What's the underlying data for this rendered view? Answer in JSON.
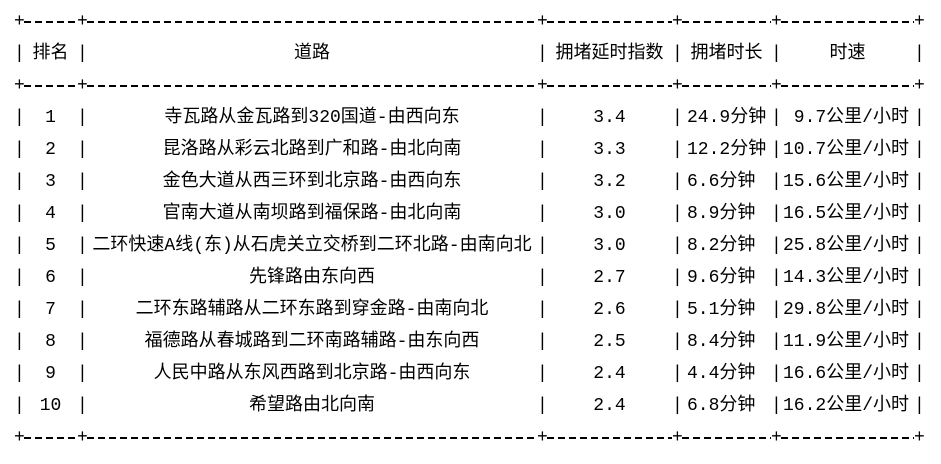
{
  "table": {
    "sep": "|",
    "cross": "+",
    "text_color": "#000000",
    "background_color": "#ffffff",
    "columns": {
      "rank": "排名",
      "road": "道路",
      "delay_index": "拥堵延时指数",
      "duration": "拥堵时长",
      "speed": "时速"
    },
    "rows": [
      {
        "rank": "1",
        "road": "寺瓦路从金瓦路到320国道-由西向东",
        "index": "3.4",
        "duration": "24.9分钟",
        "speed": "9.7公里/小时"
      },
      {
        "rank": "2",
        "road": "昆洛路从彩云北路到广和路-由北向南",
        "index": "3.3",
        "duration": "12.2分钟",
        "speed": "10.7公里/小时"
      },
      {
        "rank": "3",
        "road": "金色大道从西三环到北京路-由西向东",
        "index": "3.2",
        "duration": "6.6分钟",
        "speed": "15.6公里/小时"
      },
      {
        "rank": "4",
        "road": "官南大道从南坝路到福保路-由北向南",
        "index": "3.0",
        "duration": "8.9分钟",
        "speed": "16.5公里/小时"
      },
      {
        "rank": "5",
        "road": "二环快速A线(东)从石虎关立交桥到二环北路-由南向北",
        "index": "3.0",
        "duration": "8.2分钟",
        "speed": "25.8公里/小时"
      },
      {
        "rank": "6",
        "road": "先锋路由东向西",
        "index": "2.7",
        "duration": "9.6分钟",
        "speed": "14.3公里/小时"
      },
      {
        "rank": "7",
        "road": "二环东路辅路从二环东路到穿金路-由南向北",
        "index": "2.6",
        "duration": "5.1分钟",
        "speed": "29.8公里/小时"
      },
      {
        "rank": "8",
        "road": "福德路从春城路到二环南路辅路-由东向西",
        "index": "2.5",
        "duration": "8.4分钟",
        "speed": "11.9公里/小时"
      },
      {
        "rank": "9",
        "road": "人民中路从东风西路到北京路-由西向东",
        "index": "2.4",
        "duration": "4.4分钟",
        "speed": "16.6公里/小时"
      },
      {
        "rank": "10",
        "road": "希望路由北向南",
        "index": "2.4",
        "duration": "6.8分钟",
        "speed": "16.2公里/小时"
      }
    ]
  }
}
